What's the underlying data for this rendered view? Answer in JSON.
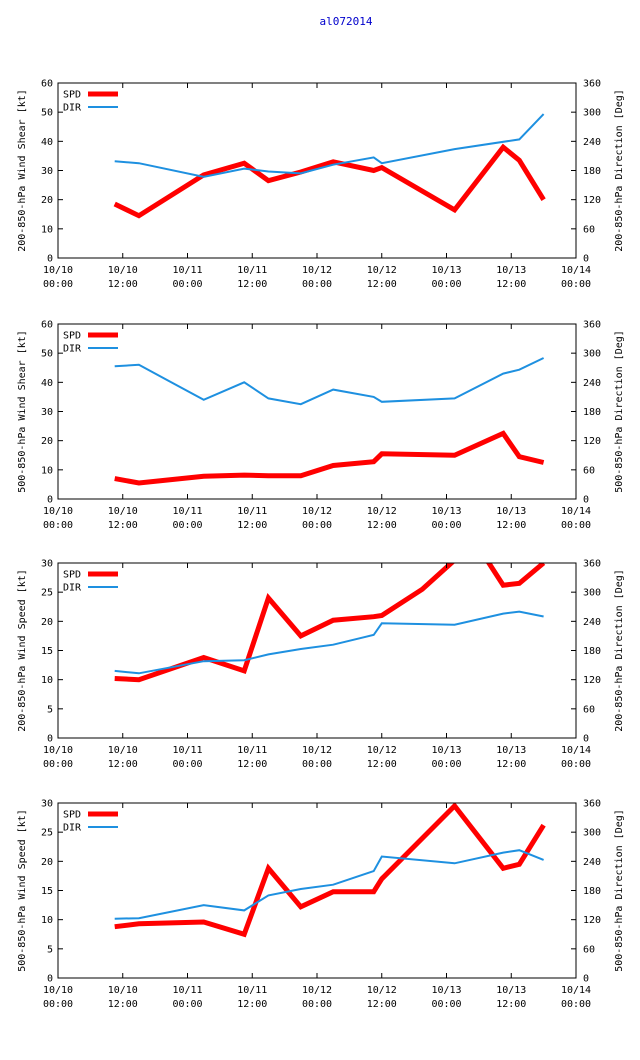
{
  "page_title": "al072014",
  "colors": {
    "title": "#0000cc",
    "spd": "#ff0000",
    "dir": "#1e90e0",
    "axis": "#000000"
  },
  "chart_data": [
    {
      "type": "line",
      "xlim": [
        0,
        96
      ],
      "x_ticks": [
        0,
        12,
        24,
        36,
        48,
        60,
        72,
        84,
        96
      ],
      "x_tick_labels": [
        [
          "10/10",
          "00:00"
        ],
        [
          "10/10",
          "12:00"
        ],
        [
          "10/11",
          "00:00"
        ],
        [
          "10/11",
          "12:00"
        ],
        [
          "10/12",
          "00:00"
        ],
        [
          "10/12",
          "12:00"
        ],
        [
          "10/13",
          "00:00"
        ],
        [
          "10/13",
          "12:00"
        ],
        [
          "10/14",
          "00:00"
        ]
      ],
      "ylabel": "200-850-hPa Wind Shear [kt]",
      "ylim": [
        0,
        60
      ],
      "y_ticks": [
        0,
        10,
        20,
        30,
        40,
        50,
        60
      ],
      "y2label": "200-850-hPa Direction [Deg]",
      "y2lim": [
        0,
        360
      ],
      "y2_ticks": [
        0,
        60,
        120,
        180,
        240,
        300,
        360
      ],
      "legend": [
        "SPD",
        "DIR"
      ],
      "series": [
        {
          "name": "SPD",
          "axis": "left",
          "width": 5,
          "x": [
            10.5,
            15,
            27,
            34.5,
            39,
            45,
            51,
            58.5,
            60,
            73.5,
            82.5,
            85.5,
            90
          ],
          "y": [
            18.5,
            14.5,
            28.5,
            32.5,
            26.5,
            29.5,
            33,
            30,
            31,
            16.5,
            38,
            33.5,
            20
          ]
        },
        {
          "name": "DIR",
          "axis": "right",
          "width": 2,
          "x": [
            10.5,
            15,
            27,
            34.5,
            39,
            45,
            51,
            58.5,
            60,
            73.5,
            85.5,
            90
          ],
          "y": [
            199,
            195,
            167,
            184,
            178,
            174,
            192,
            207,
            195,
            224,
            244,
            296
          ]
        }
      ]
    },
    {
      "type": "line",
      "xlim": [
        0,
        96
      ],
      "x_ticks": [
        0,
        12,
        24,
        36,
        48,
        60,
        72,
        84,
        96
      ],
      "x_tick_labels": [
        [
          "10/10",
          "00:00"
        ],
        [
          "10/10",
          "12:00"
        ],
        [
          "10/11",
          "00:00"
        ],
        [
          "10/11",
          "12:00"
        ],
        [
          "10/12",
          "00:00"
        ],
        [
          "10/12",
          "12:00"
        ],
        [
          "10/13",
          "00:00"
        ],
        [
          "10/13",
          "12:00"
        ],
        [
          "10/14",
          "00:00"
        ]
      ],
      "ylabel": "500-850-hPa Wind Shear [kt]",
      "ylim": [
        0,
        60
      ],
      "y_ticks": [
        0,
        10,
        20,
        30,
        40,
        50,
        60
      ],
      "y2label": "500-850-hPa Direction [Deg]",
      "y2lim": [
        0,
        360
      ],
      "y2_ticks": [
        0,
        60,
        120,
        180,
        240,
        300,
        360
      ],
      "legend": [
        "SPD",
        "DIR"
      ],
      "series": [
        {
          "name": "SPD",
          "axis": "left",
          "width": 5,
          "x": [
            10.5,
            15,
            27,
            34.5,
            39,
            45,
            51,
            58.5,
            60,
            73.5,
            82.5,
            85.5,
            90
          ],
          "y": [
            7,
            5.5,
            7.8,
            8.2,
            8,
            8,
            11.5,
            12.8,
            15.5,
            15,
            22.5,
            14.5,
            12.5
          ]
        },
        {
          "name": "DIR",
          "axis": "right",
          "width": 2,
          "x": [
            10.5,
            15,
            27,
            34.5,
            39,
            45,
            51,
            58.5,
            60,
            73.5,
            82.5,
            85.5,
            90
          ],
          "y": [
            273,
            276,
            204,
            240,
            207,
            195,
            225,
            210,
            200,
            207,
            258,
            266,
            290
          ]
        }
      ]
    },
    {
      "type": "line",
      "xlim": [
        0,
        96
      ],
      "x_ticks": [
        0,
        12,
        24,
        36,
        48,
        60,
        72,
        84,
        96
      ],
      "x_tick_labels": [
        [
          "10/10",
          "00:00"
        ],
        [
          "10/10",
          "12:00"
        ],
        [
          "10/11",
          "00:00"
        ],
        [
          "10/11",
          "12:00"
        ],
        [
          "10/12",
          "00:00"
        ],
        [
          "10/12",
          "12:00"
        ],
        [
          "10/13",
          "00:00"
        ],
        [
          "10/13",
          "12:00"
        ],
        [
          "10/14",
          "00:00"
        ]
      ],
      "ylabel": "200-850-hPa Wind Speed [kt]",
      "ylim": [
        0,
        30
      ],
      "y_ticks": [
        0,
        5,
        10,
        15,
        20,
        25,
        30
      ],
      "y2label": "200-850-hPa Direction [Deg]",
      "y2lim": [
        0,
        360
      ],
      "y2_ticks": [
        0,
        60,
        120,
        180,
        240,
        300,
        360
      ],
      "legend": [
        "SPD",
        "DIR"
      ],
      "series": [
        {
          "name": "SPD",
          "axis": "left",
          "width": 5,
          "x": [
            10.5,
            15,
            27,
            34.5,
            39,
            45,
            51,
            58.5,
            60,
            67.5,
            73.5,
            79.5,
            82.5,
            85.5,
            90
          ],
          "y": [
            10.2,
            10,
            13.8,
            11.5,
            24,
            17.5,
            20.2,
            20.8,
            21,
            25.5,
            30.5,
            30.5,
            26.2,
            26.5,
            30
          ],
          "segments": [
            [
              0,
              10
            ],
            [
              11,
              14
            ]
          ]
        },
        {
          "name": "DIR",
          "axis": "right",
          "width": 2,
          "x": [
            10.5,
            15,
            27,
            34.5,
            39,
            45,
            51,
            58.5,
            60,
            73.5,
            82.5,
            85.5,
            90
          ],
          "y": [
            138,
            133,
            158,
            160,
            172,
            183,
            192,
            212,
            236,
            233,
            256,
            260,
            250
          ]
        }
      ]
    },
    {
      "type": "line",
      "xlim": [
        0,
        96
      ],
      "x_ticks": [
        0,
        12,
        24,
        36,
        48,
        60,
        72,
        84,
        96
      ],
      "x_tick_labels": [
        [
          "10/10",
          "00:00"
        ],
        [
          "10/10",
          "12:00"
        ],
        [
          "10/11",
          "00:00"
        ],
        [
          "10/11",
          "12:00"
        ],
        [
          "10/12",
          "00:00"
        ],
        [
          "10/12",
          "12:00"
        ],
        [
          "10/13",
          "00:00"
        ],
        [
          "10/13",
          "12:00"
        ],
        [
          "10/14",
          "00:00"
        ]
      ],
      "ylabel": "500-850-hPa Wind Speed [kt]",
      "ylim": [
        0,
        30
      ],
      "y_ticks": [
        0,
        5,
        10,
        15,
        20,
        25,
        30
      ],
      "y2label": "500-850-hPa Direction [Deg]",
      "y2lim": [
        0,
        360
      ],
      "y2_ticks": [
        0,
        60,
        120,
        180,
        240,
        300,
        360
      ],
      "legend": [
        "SPD",
        "DIR"
      ],
      "series": [
        {
          "name": "SPD",
          "axis": "left",
          "width": 5,
          "x": [
            10.5,
            15,
            27,
            34.5,
            39,
            45,
            51,
            58.5,
            60,
            73.5,
            82.5,
            85.5,
            90
          ],
          "y": [
            8.8,
            9.3,
            9.6,
            7.5,
            18.8,
            12.2,
            14.8,
            14.8,
            17,
            29.5,
            18.8,
            19.5,
            26.2
          ]
        },
        {
          "name": "DIR",
          "axis": "right",
          "width": 2,
          "x": [
            10.5,
            15,
            27,
            34.5,
            39,
            45,
            51,
            58.5,
            60,
            73.5,
            82.5,
            85.5,
            90
          ],
          "y": [
            122,
            123,
            150,
            139,
            170,
            183,
            192,
            220,
            250,
            236,
            258,
            263,
            243
          ]
        }
      ]
    }
  ]
}
